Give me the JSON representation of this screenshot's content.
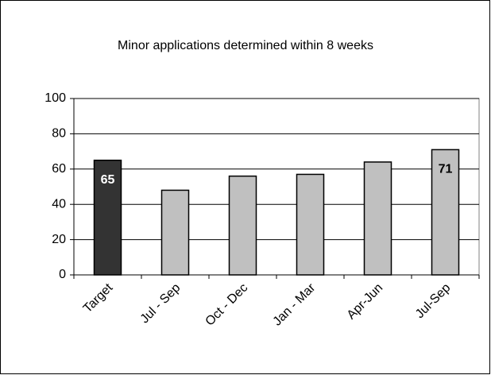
{
  "chart_data": {
    "type": "bar",
    "title": "Minor applications determined within 8 weeks",
    "categories": [
      "Target",
      "Jul - Sep",
      "Oct - Dec",
      "Jan - Mar",
      "Apr-Jun",
      "Jul-Sep"
    ],
    "values": [
      65,
      48,
      56,
      57,
      64,
      71
    ],
    "value_labels": [
      "65",
      null,
      null,
      null,
      null,
      "71"
    ],
    "colors": [
      "#333333",
      "#c0c0c0",
      "#c0c0c0",
      "#c0c0c0",
      "#c0c0c0",
      "#c0c0c0"
    ],
    "ylim": [
      0,
      100
    ],
    "yticks": [
      0,
      20,
      40,
      60,
      80,
      100
    ],
    "grid": true
  }
}
